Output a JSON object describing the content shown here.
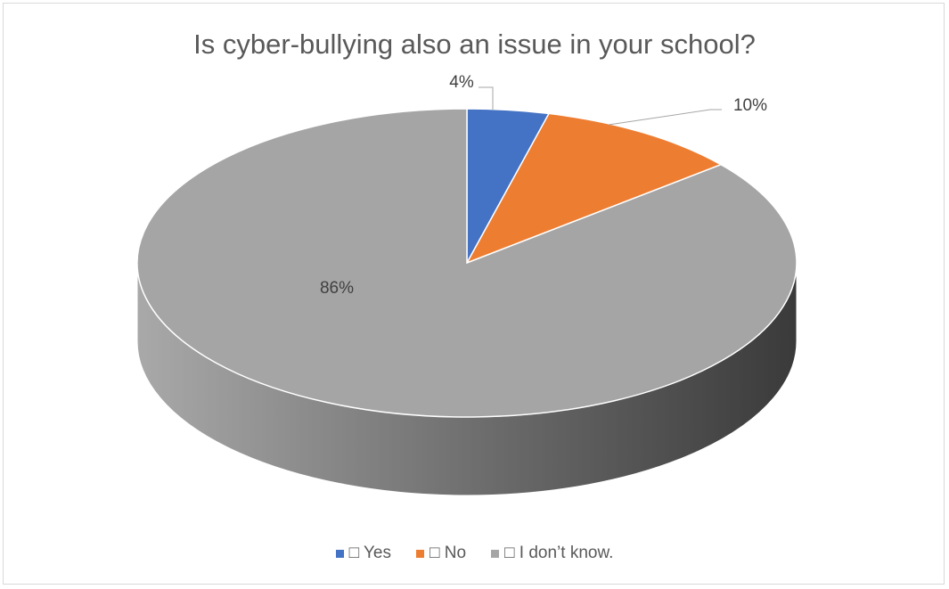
{
  "chart_data": {
    "type": "pie",
    "title": "Is cyber-bullying also an issue in your school?",
    "style": "3d",
    "legend_position": "bottom",
    "slices": [
      {
        "label": "□ Yes",
        "value": 4,
        "data_label": "4%",
        "color": "#4472c4"
      },
      {
        "label": "□ No",
        "value": 10,
        "data_label": "10%",
        "color": "#ed7d31"
      },
      {
        "label": "□ I don’t know.",
        "value": 86,
        "data_label": "86%",
        "color": "#a5a5a5"
      }
    ]
  }
}
